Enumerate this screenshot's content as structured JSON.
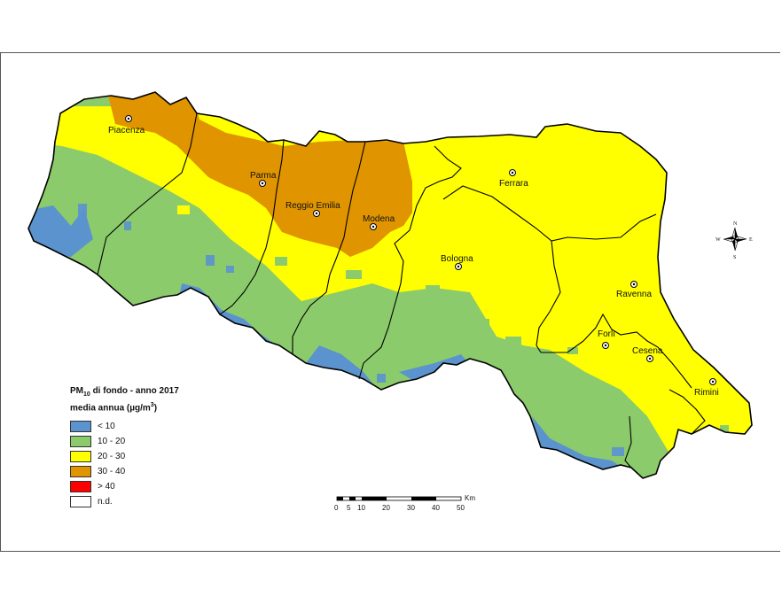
{
  "legend": {
    "title_pm": "PM",
    "title_sub": "10",
    "title_rest": " di fondo - anno 2017",
    "subtitle_pre": "media annua (µg/m",
    "subtitle_sup": "3",
    "subtitle_post": ")",
    "items": [
      {
        "label": "< 10",
        "color": "#5b93cf"
      },
      {
        "label": "10 - 20",
        "color": "#8ccb6b"
      },
      {
        "label": "20 - 30",
        "color": "#ffff00"
      },
      {
        "label": "30 - 40",
        "color": "#e09400"
      },
      {
        "label": "> 40",
        "color": "#ff0000"
      },
      {
        "label": "n.d.",
        "color": "#ffffff"
      }
    ]
  },
  "cities": {
    "piacenza": "Piacenza",
    "parma": "Parma",
    "reggio": "Reggio Emilia",
    "modena": "Modena",
    "ferrara": "Ferrara",
    "bologna": "Bologna",
    "ravenna": "Ravenna",
    "forli": "Forlì",
    "cesena": "Cesena",
    "rimini": "Rimini"
  },
  "scale": {
    "unit": "Km",
    "ticks": [
      "0",
      "5",
      "10",
      "20",
      "30",
      "40",
      "50"
    ]
  },
  "compass": {
    "n": "N",
    "s": "S",
    "e": "E",
    "w": "W"
  }
}
